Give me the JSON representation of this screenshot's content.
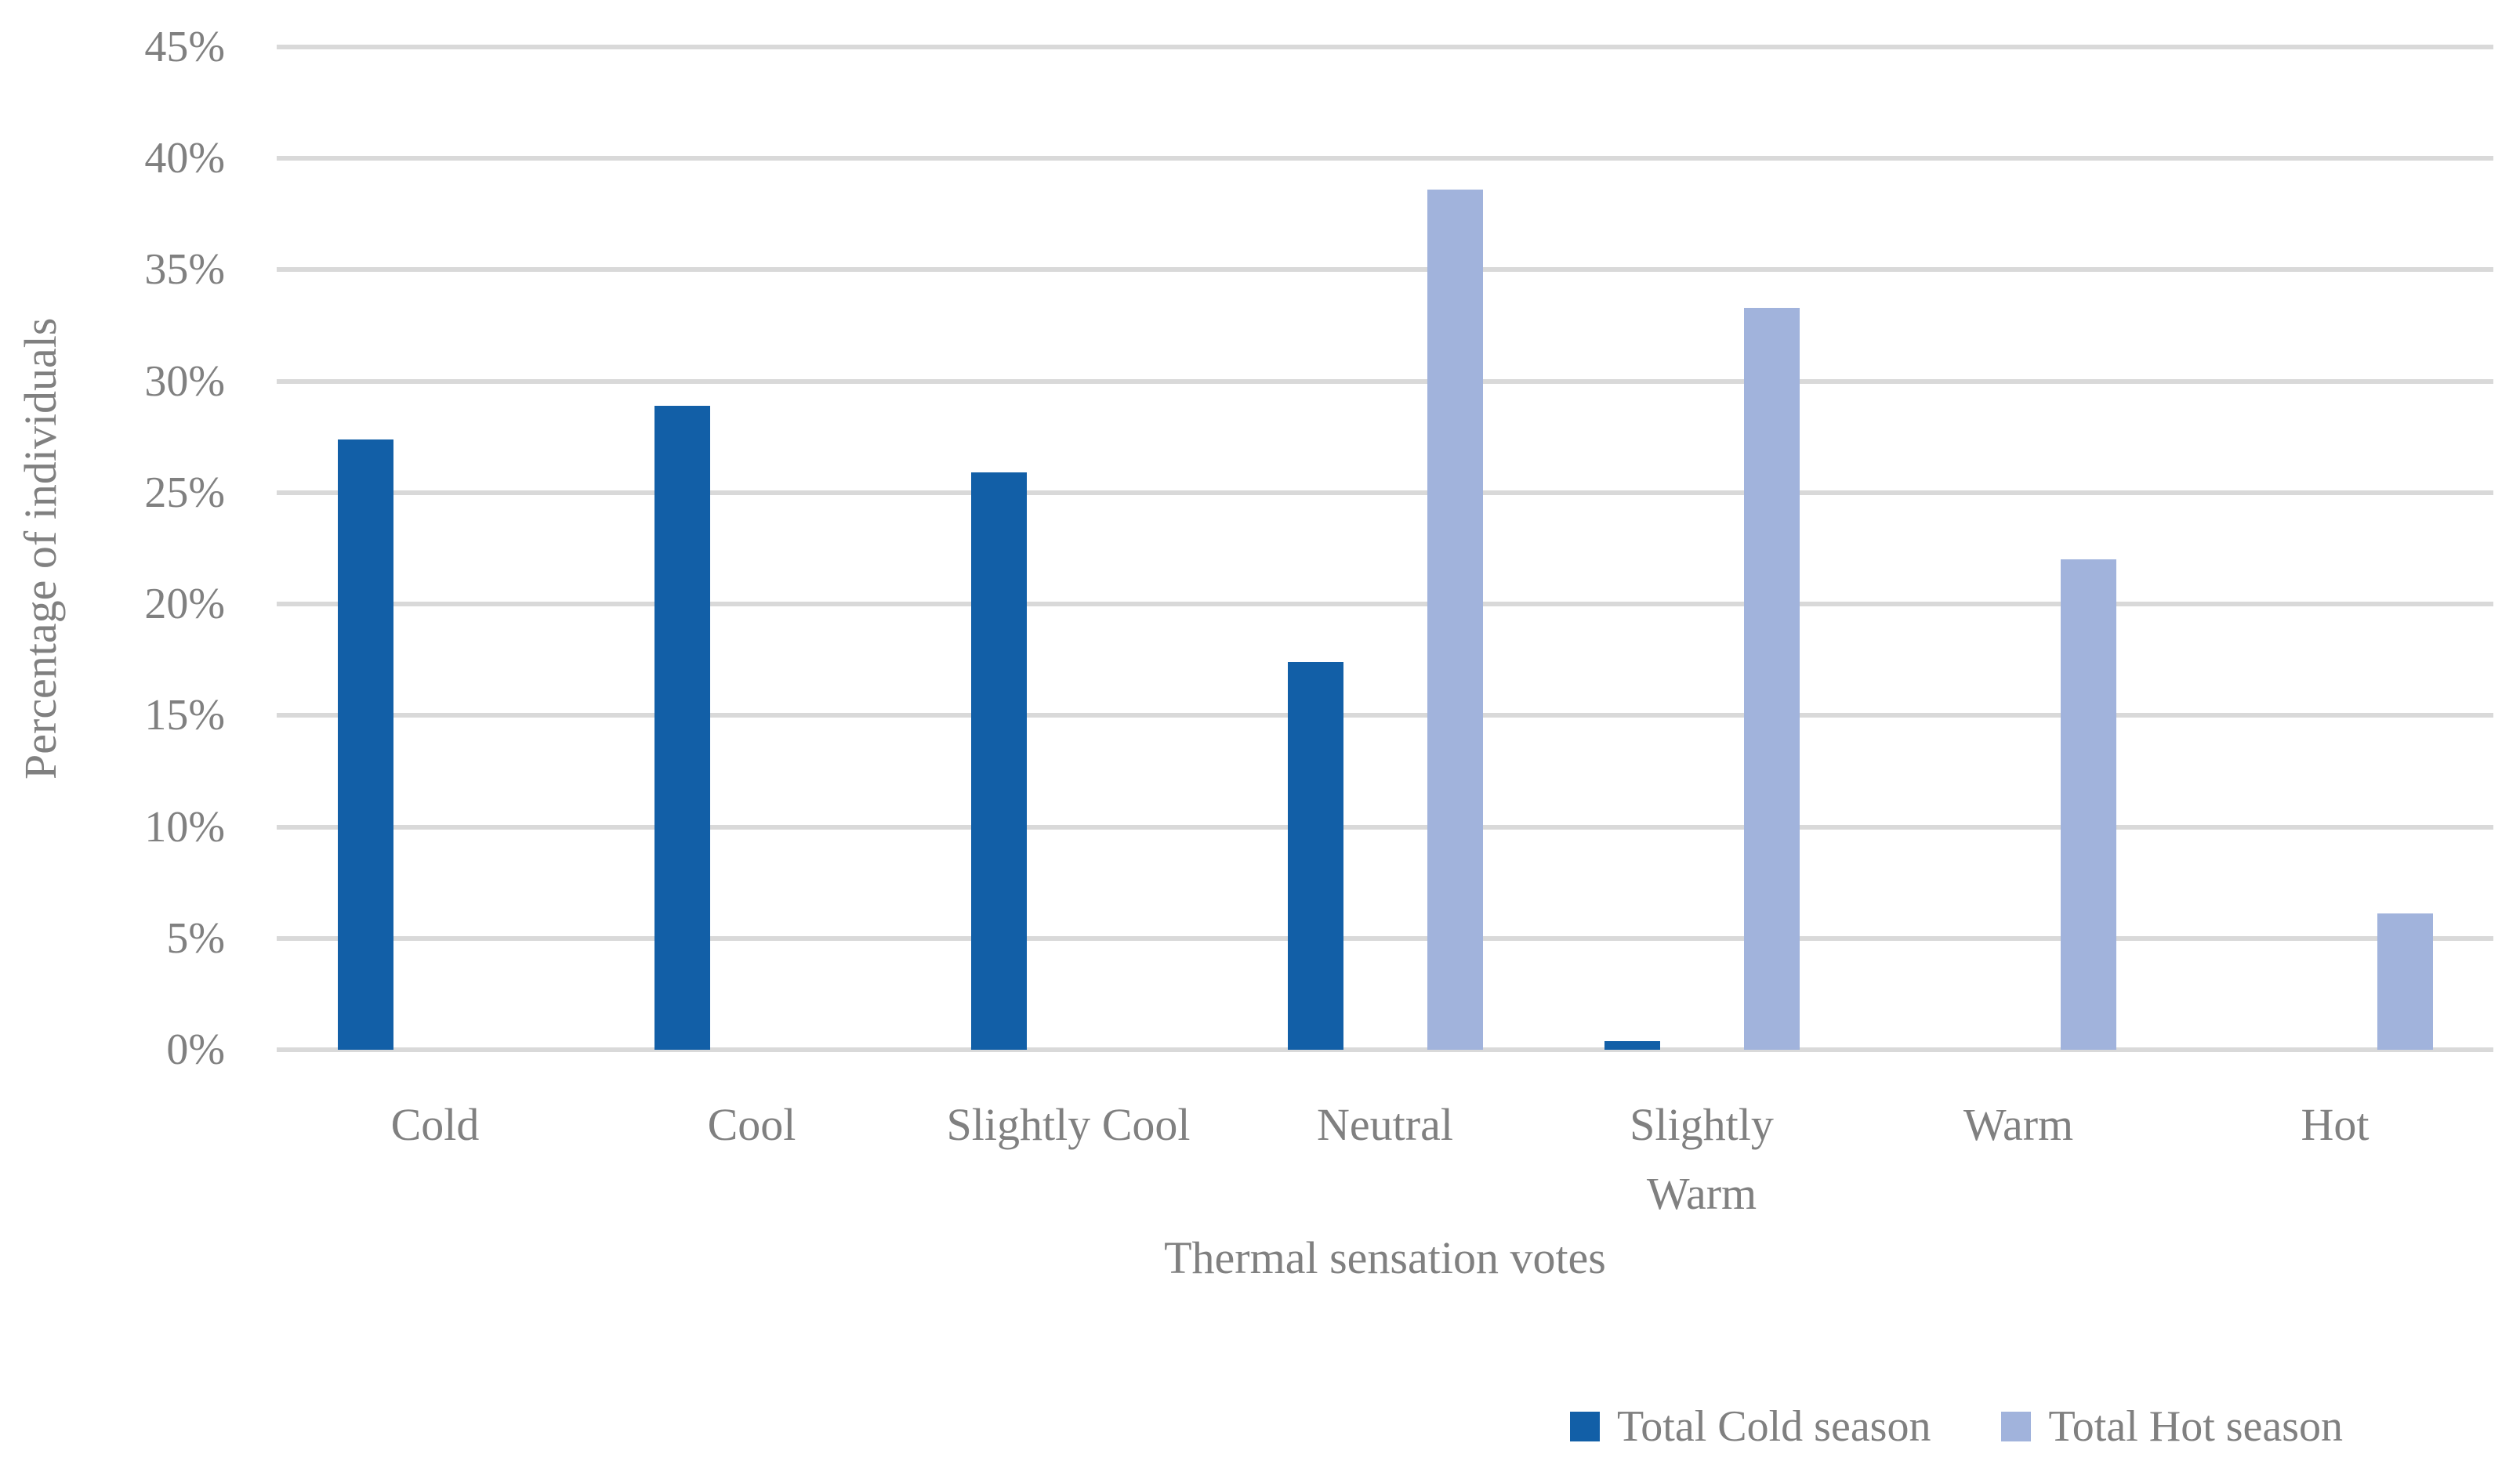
{
  "figure": {
    "background": "#ffffff",
    "text_color": "#808080",
    "gridline_color": "#d9d9d9"
  },
  "y_axis": {
    "title": "Percentage of individuals",
    "ticks": [
      "45%",
      "40%",
      "35%",
      "30%",
      "25%",
      "20%",
      "15%",
      "10%",
      "5%",
      "0%"
    ]
  },
  "x_axis": {
    "title": "Thermal sensation votes"
  },
  "legend": {
    "position": "bottom-right",
    "items": [
      {
        "label": "Total Cold season",
        "color": "#125FA7"
      },
      {
        "label": "Total Hot season",
        "color": "#A1B3DC"
      }
    ]
  },
  "chart_data": {
    "type": "bar",
    "title": "",
    "xlabel": "Thermal sensation votes",
    "ylabel": "Percentage of individuals",
    "categories": [
      "Cold",
      "Cool",
      "Slightly Cool",
      "Neutral",
      "Slightly\nWarm",
      "Warm",
      "Hot"
    ],
    "series": [
      {
        "name": "Total Cold season",
        "color": "#125FA7",
        "values": [
          27.4,
          28.9,
          25.9,
          17.4,
          0.4,
          0,
          0
        ]
      },
      {
        "name": "Total Hot season",
        "color": "#A1B3DC",
        "values": [
          0,
          0,
          0,
          38.6,
          33.3,
          22.0,
          6.1
        ]
      }
    ],
    "ylim": [
      0,
      45
    ],
    "ytick_step": 5,
    "ytick_format": "percent",
    "grid": true,
    "legend_position": "bottom-right"
  }
}
